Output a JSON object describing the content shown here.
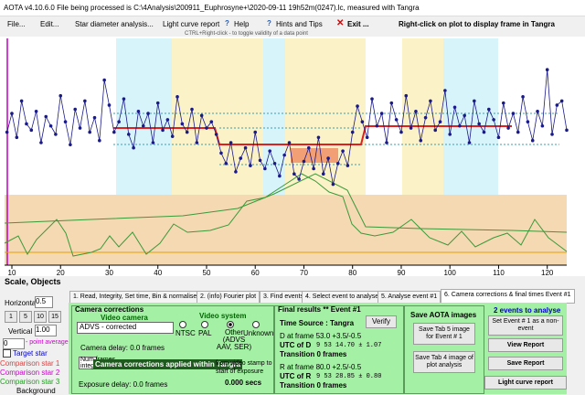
{
  "window": {
    "title": "AOTA v4.10.6.0   File being processed is C:\\4Analysis\\200911_Euphrosyne+\\2020-09-11 19h52m(0247).lc, measured with Tangra"
  },
  "menu": {
    "items": [
      "File...",
      "Edit...",
      "Star diameter analysis...",
      "Light curve report",
      "Help",
      "Hints and Tips",
      "Exit ..."
    ],
    "right_hint": "Right-click on plot to display frame in Tangra"
  },
  "plot": {
    "hint": "CTRL+Right-click  -  to toggle validity of a data point",
    "xlim": [
      8.5,
      124
    ],
    "ylim": [
      0,
      1.5
    ],
    "xticks": [
      10,
      20,
      30,
      40,
      50,
      60,
      70,
      80,
      90,
      100,
      110,
      120
    ],
    "x": [
      9,
      10,
      11,
      12,
      13,
      14,
      15,
      16,
      17,
      18,
      19,
      20,
      21,
      22,
      23,
      24,
      25,
      26,
      27,
      28,
      29,
      30,
      31,
      32,
      33,
      34,
      35,
      36,
      37,
      38,
      39,
      40,
      41,
      42,
      43,
      44,
      45,
      46,
      47,
      48,
      49,
      50,
      51,
      52,
      53,
      54,
      55,
      56,
      57,
      58,
      59,
      60,
      61,
      62,
      63,
      64,
      65,
      66,
      67,
      68,
      69,
      70,
      71,
      72,
      73,
      74,
      75,
      76,
      77,
      78,
      79,
      80,
      81,
      82,
      83,
      84,
      85,
      86,
      87,
      88,
      89,
      90,
      91,
      92,
      93,
      94,
      95,
      96,
      97,
      98,
      99,
      100,
      101,
      102,
      103,
      104,
      105,
      106,
      107,
      108,
      109,
      110,
      111,
      112,
      113,
      114,
      115,
      116,
      117,
      118,
      119,
      120,
      121,
      122,
      123,
      124
    ],
    "values": [
      0.6,
      0.78,
      0.55,
      0.9,
      0.68,
      0.62,
      0.8,
      0.5,
      0.75,
      0.66,
      0.58,
      0.95,
      0.7,
      0.48,
      0.82,
      0.64,
      0.9,
      0.6,
      0.74,
      0.52,
      1.1,
      0.86,
      0.6,
      0.7,
      0.92,
      0.58,
      0.45,
      0.8,
      0.66,
      0.78,
      0.5,
      0.88,
      0.62,
      0.72,
      0.56,
      0.94,
      0.68,
      0.6,
      0.82,
      0.5,
      0.76,
      0.64,
      0.7,
      0.58,
      0.4,
      0.3,
      0.5,
      0.22,
      0.35,
      0.45,
      0.28,
      0.6,
      0.33,
      0.25,
      0.42,
      0.3,
      0.18,
      0.38,
      0.5,
      0.2,
      0.15,
      0.32,
      0.45,
      0.25,
      0.55,
      0.2,
      0.35,
      0.1,
      0.3,
      0.42,
      0.28,
      0.6,
      0.85,
      0.7,
      0.55,
      0.92,
      0.66,
      0.78,
      0.5,
      0.88,
      0.72,
      0.6,
      0.95,
      0.64,
      0.8,
      0.52,
      0.74,
      0.9,
      0.62,
      0.7,
      1.0,
      0.58,
      0.84,
      0.66,
      0.76,
      0.5,
      0.9,
      0.68,
      0.6,
      0.82,
      0.72,
      0.55,
      0.88,
      0.64,
      0.78,
      0.6,
      0.94,
      0.7,
      0.52,
      0.8,
      0.66,
      1.2,
      0.58,
      0.86,
      0.9,
      0.62
    ]
  },
  "scale": {
    "title": "Scale,  Objects",
    "horizontal_label": "Horizontal",
    "horizontal_value": "0.5",
    "buttons": [
      "1",
      "5",
      "10",
      "15"
    ],
    "vertical_label": "Vertical",
    "vertical_value": "1.00",
    "average_value": "0",
    "average_label": "- point average",
    "objects": [
      "Target star",
      "Comparison star 1",
      "Comparison star 2",
      "Comparison star 3",
      "Background"
    ]
  },
  "tabs": [
    "1. Read, Integrity, Set time, Bin & normalise",
    "2. (info) Fourier plot",
    "3. Find events",
    "4. Select event to analyse",
    "5. Analyse event #1",
    "6. Camera corrections & final times Event #1"
  ],
  "camera": {
    "title": "Camera corrections",
    "video_camera": "Video camera",
    "camera_value": "ADVS - corrected",
    "camera_delay": "Camera delay: 0.0 frames",
    "num_frames": "Num frames integrated",
    "popup": "Camera corrections applied within Tangra",
    "stamp": "from video stamp to start of exposure",
    "secs": "0.000 secs",
    "exposure_delay": "Exposure delay: 0.0 frames",
    "video_system": "Video system",
    "systems": [
      "NTSC",
      "PAL",
      "Other (ADVS AAV, SER)",
      "Unknown"
    ]
  },
  "results": {
    "title": "Final results  **  Event #1",
    "time_source": "Time Source :  Tangra",
    "verify": "Verify",
    "d_frame": "D   at frame 53.0  +3.5/-0.5",
    "d_utc_label": "UTC of D",
    "d_utc": "9  53  14.70  ± 1.07",
    "d_transition": "Transition  0 frames",
    "r_frame": "R   at frame 80.0  +2.5/-0.5",
    "r_utc_label": "UTC of R",
    "r_utc": "9  53  28.85  ± 0.80",
    "r_transition": "Transition  0 frames"
  },
  "save": {
    "title": "Save AOTA images",
    "tab5": "Save Tab 5 image for Event # 1",
    "tab4": "Save Tab 4 image of plot analysis"
  },
  "events": {
    "title": "2 events to analyse",
    "set_event": "Set Event # 1 as a non-event",
    "view": "View Report",
    "save": "Save Report",
    "lc_report": "Light curve report"
  }
}
